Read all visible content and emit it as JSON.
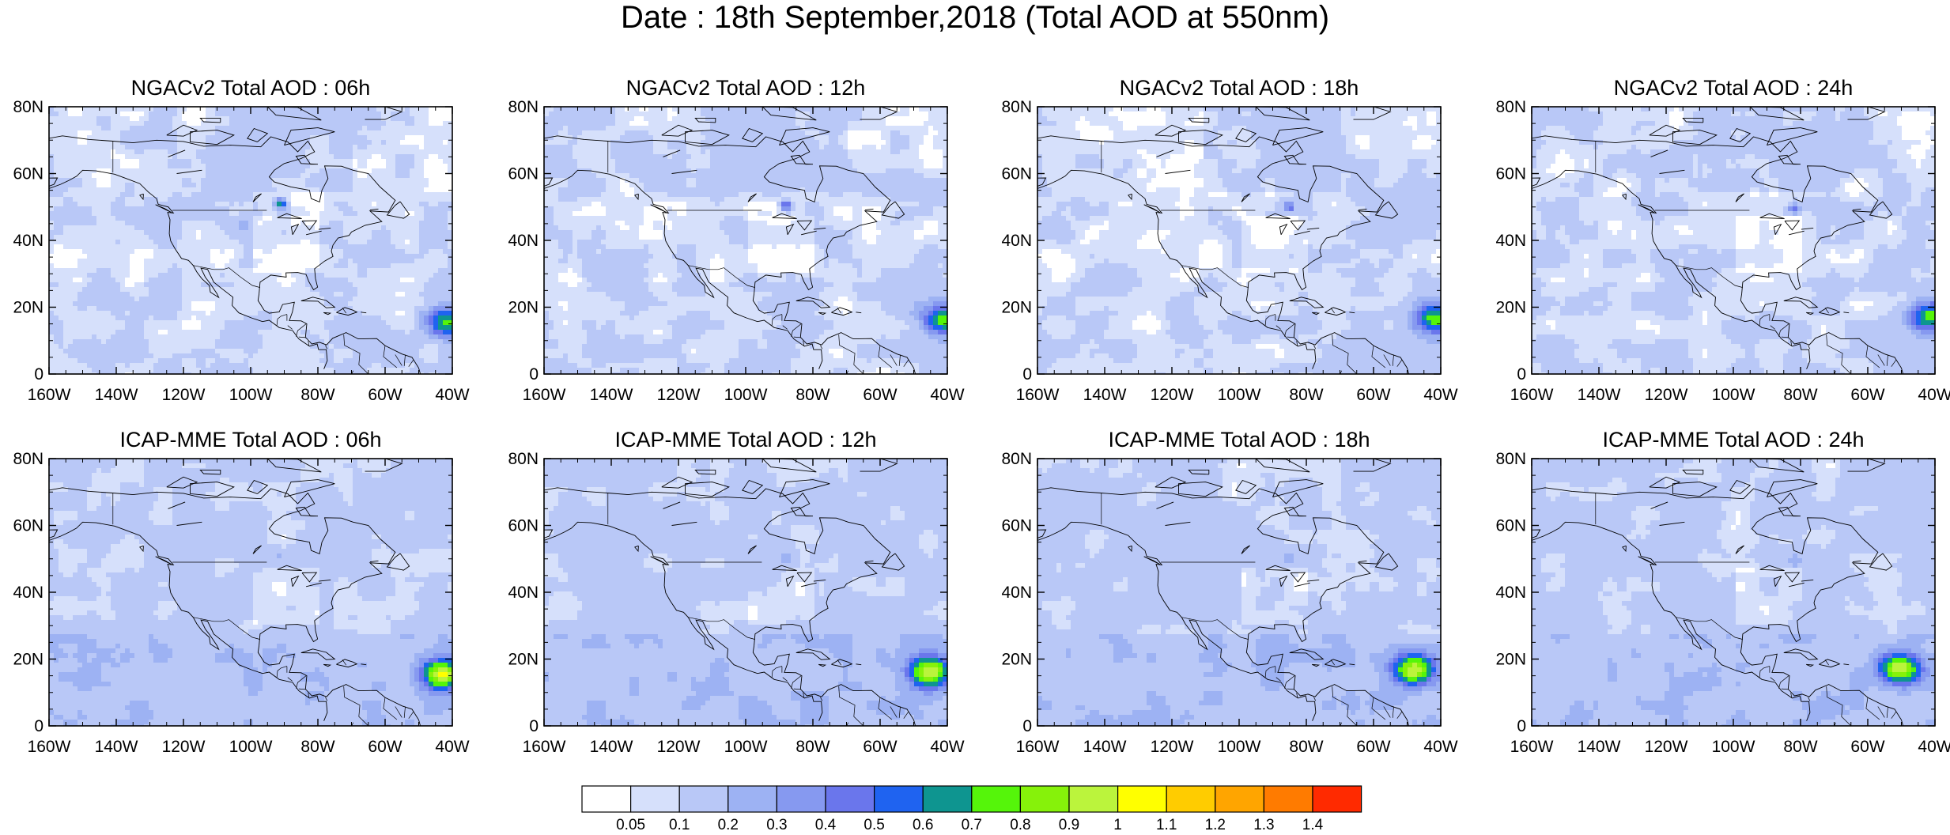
{
  "figure": {
    "title": "Date : 18th September,2018 (Total AOD at 550nm)"
  },
  "axes": {
    "lat_ticks": [
      "80N",
      "60N",
      "40N",
      "20N",
      "0"
    ],
    "lon_ticks": [
      "160W",
      "140W",
      "120W",
      "100W",
      "80W",
      "60W",
      "40W"
    ]
  },
  "panels": [
    {
      "title": "NGACv2 Total AOD : 06h",
      "model": "NGACv2",
      "hour": 6,
      "atlantic_plume_peak_aod": 0.65,
      "great_lakes_peak_aod": 0.65
    },
    {
      "title": "NGACv2 Total AOD : 12h",
      "model": "NGACv2",
      "hour": 12,
      "atlantic_plume_peak_aod": 0.65,
      "great_lakes_peak_aod": 0.55
    },
    {
      "title": "NGACv2 Total AOD : 18h",
      "model": "NGACv2",
      "hour": 18,
      "atlantic_plume_peak_aod": 0.65,
      "great_lakes_peak_aod": 0.45
    },
    {
      "title": "NGACv2 Total AOD : 24h",
      "model": "NGACv2",
      "hour": 24,
      "atlantic_plume_peak_aod": 0.65,
      "great_lakes_peak_aod": 0.4
    },
    {
      "title": "ICAP-MME Total AOD : 06h",
      "model": "ICAP-MME",
      "hour": 6,
      "atlantic_plume_peak_aod": 0.85,
      "great_lakes_peak_aod": 0.3
    },
    {
      "title": "ICAP-MME Total AOD : 12h",
      "model": "ICAP-MME",
      "hour": 12,
      "atlantic_plume_peak_aod": 0.85,
      "great_lakes_peak_aod": 0.3
    },
    {
      "title": "ICAP-MME Total AOD : 18h",
      "model": "ICAP-MME",
      "hour": 18,
      "atlantic_plume_peak_aod": 0.85,
      "great_lakes_peak_aod": 0.3
    },
    {
      "title": "ICAP-MME Total AOD : 24h",
      "model": "ICAP-MME",
      "hour": 24,
      "atlantic_plume_peak_aod": 0.85,
      "great_lakes_peak_aod": 0.3
    }
  ],
  "map_extent": {
    "lon_min": -160,
    "lon_max": -40,
    "lat_min": 0,
    "lat_max": 80
  },
  "colorbar": {
    "labels": [
      "0.05",
      "0.1",
      "0.2",
      "0.3",
      "0.4",
      "0.5",
      "0.6",
      "0.7",
      "0.8",
      "0.9",
      "1",
      "1.1",
      "1.2",
      "1.3",
      "1.4"
    ],
    "colors": [
      "#ffffff",
      "#d6e0fb",
      "#b9c8f7",
      "#9db2f3",
      "#8699f0",
      "#6a76ec",
      "#1f63f0",
      "#0e9590",
      "#55f50a",
      "#86f20a",
      "#bbf43c",
      "#ffff00",
      "#ffcc00",
      "#ffa500",
      "#ff7b00",
      "#ff2a00"
    ]
  }
}
